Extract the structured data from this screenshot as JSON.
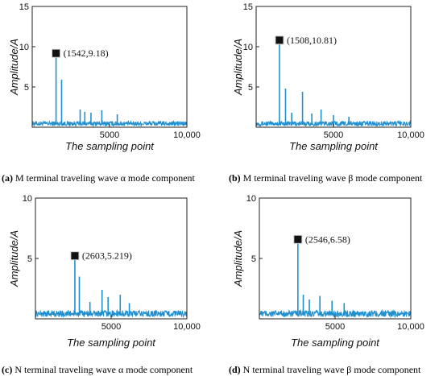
{
  "chart_data": [
    {
      "type": "line",
      "id": "a",
      "caption_letter": "(a)",
      "caption_text": "M terminal traveling wave α mode component",
      "xlabel": "The sampling point",
      "ylabel": "Amplitude/A",
      "xlim": [
        0,
        10000
      ],
      "ylim": [
        0,
        15
      ],
      "xticks": [
        "5000",
        "10,000"
      ],
      "yticks": [
        "5",
        "10",
        "15"
      ],
      "noise_level": 0.6,
      "color": "#1f8fd0",
      "spikes": [
        {
          "x": 1542,
          "y": 9.18
        },
        {
          "x": 1900,
          "y": 5.9
        },
        {
          "x": 3100,
          "y": 2.2
        },
        {
          "x": 3400,
          "y": 1.9
        },
        {
          "x": 3800,
          "y": 1.8
        },
        {
          "x": 4500,
          "y": 2.1
        },
        {
          "x": 5500,
          "y": 1.6
        }
      ],
      "peak": {
        "x": 1542,
        "y": 9.18,
        "label": "(1542,9.18)"
      }
    },
    {
      "type": "line",
      "id": "b",
      "caption_letter": "(b)",
      "caption_text": "M terminal traveling wave β mode component",
      "xlabel": "The sampling point",
      "ylabel": "Amplitude/A",
      "xlim": [
        0,
        10000
      ],
      "ylim": [
        0,
        15
      ],
      "xticks": [
        "5000",
        "10,000"
      ],
      "yticks": [
        "5",
        "10",
        "15"
      ],
      "noise_level": 0.6,
      "color": "#1f8fd0",
      "spikes": [
        {
          "x": 1508,
          "y": 10.81
        },
        {
          "x": 1900,
          "y": 4.8
        },
        {
          "x": 2300,
          "y": 1.8
        },
        {
          "x": 3000,
          "y": 4.4
        },
        {
          "x": 3600,
          "y": 1.7
        },
        {
          "x": 4200,
          "y": 2.2
        },
        {
          "x": 5000,
          "y": 1.5
        },
        {
          "x": 6000,
          "y": 1.3
        }
      ],
      "peak": {
        "x": 1508,
        "y": 10.81,
        "label": "(1508,10.81)"
      }
    },
    {
      "type": "line",
      "id": "c",
      "caption_letter": "(c)",
      "caption_text": "N terminal traveling wave α mode component",
      "xlabel": "The sampling point",
      "ylabel": "Amplitude/A",
      "xlim": [
        0,
        10000
      ],
      "ylim": [
        0,
        10
      ],
      "xticks": [
        "5000",
        "10,000"
      ],
      "yticks": [
        "5",
        "10"
      ],
      "noise_level": 0.55,
      "color": "#1f8fd0",
      "spikes": [
        {
          "x": 2603,
          "y": 5.219
        },
        {
          "x": 2900,
          "y": 3.5
        },
        {
          "x": 3600,
          "y": 1.4
        },
        {
          "x": 4400,
          "y": 2.4
        },
        {
          "x": 4800,
          "y": 1.8
        },
        {
          "x": 5600,
          "y": 2.0
        },
        {
          "x": 6200,
          "y": 1.3
        }
      ],
      "peak": {
        "x": 2603,
        "y": 5.219,
        "label": "(2603,5.219)"
      }
    },
    {
      "type": "line",
      "id": "d",
      "caption_letter": "(d)",
      "caption_text": "N terminal traveling wave β mode component",
      "xlabel": "The sampling point",
      "ylabel": "Amplitude/A",
      "xlim": [
        0,
        10000
      ],
      "ylim": [
        0,
        10
      ],
      "xticks": [
        "5000",
        "10,000"
      ],
      "yticks": [
        "5",
        "10"
      ],
      "noise_level": 0.55,
      "color": "#1f8fd0",
      "spikes": [
        {
          "x": 2546,
          "y": 6.58
        },
        {
          "x": 2900,
          "y": 2.0
        },
        {
          "x": 3300,
          "y": 1.6
        },
        {
          "x": 4000,
          "y": 1.9
        },
        {
          "x": 4800,
          "y": 1.5
        },
        {
          "x": 5600,
          "y": 1.3
        }
      ],
      "peak": {
        "x": 2546,
        "y": 6.58,
        "label": "(2546,6.58)"
      }
    }
  ]
}
